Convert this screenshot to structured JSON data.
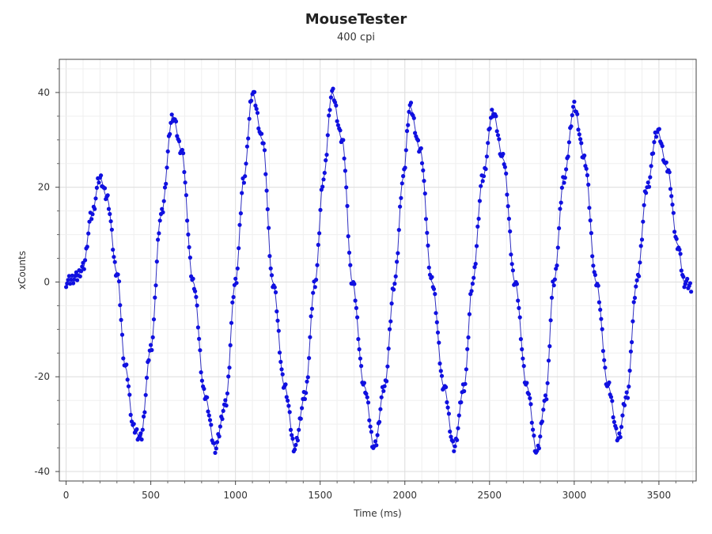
{
  "chart_data": {
    "type": "scatter",
    "title": "MouseTester",
    "subtitle": "400 cpi",
    "xlabel": "Time (ms)",
    "ylabel": "xCounts",
    "xlim": [
      -40,
      3720
    ],
    "ylim": [
      -42,
      47
    ],
    "x_ticks": [
      0,
      500,
      1000,
      1500,
      2000,
      2500,
      3000,
      3500
    ],
    "y_ticks": [
      -40,
      -20,
      0,
      20,
      40
    ],
    "grid": true,
    "legend": "none",
    "marker_color": "#1010e0",
    "line_color": "#3030c0",
    "series": [
      {
        "points_description_keyframes": [
          [
            0,
            0
          ],
          [
            60,
            1
          ],
          [
            100,
            3
          ],
          [
            150,
            14
          ],
          [
            200,
            22
          ],
          [
            240,
            18
          ],
          [
            300,
            2
          ],
          [
            350,
            -18
          ],
          [
            400,
            -31
          ],
          [
            440,
            -33
          ],
          [
            500,
            -14
          ],
          [
            560,
            14
          ],
          [
            630,
            35
          ],
          [
            680,
            28
          ],
          [
            750,
            0
          ],
          [
            820,
            -24
          ],
          [
            880,
            -35
          ],
          [
            940,
            -26
          ],
          [
            1000,
            0
          ],
          [
            1050,
            22
          ],
          [
            1100,
            40
          ],
          [
            1160,
            30
          ],
          [
            1220,
            0
          ],
          [
            1290,
            -22
          ],
          [
            1350,
            -35
          ],
          [
            1410,
            -24
          ],
          [
            1470,
            0
          ],
          [
            1520,
            22
          ],
          [
            1570,
            40
          ],
          [
            1630,
            30
          ],
          [
            1690,
            0
          ],
          [
            1760,
            -22
          ],
          [
            1820,
            -35
          ],
          [
            1880,
            -22
          ],
          [
            1940,
            0
          ],
          [
            1990,
            22
          ],
          [
            2030,
            37
          ],
          [
            2090,
            28
          ],
          [
            2160,
            0
          ],
          [
            2230,
            -22
          ],
          [
            2290,
            -35
          ],
          [
            2350,
            -22
          ],
          [
            2400,
            0
          ],
          [
            2460,
            22
          ],
          [
            2520,
            36
          ],
          [
            2580,
            26
          ],
          [
            2650,
            0
          ],
          [
            2720,
            -22
          ],
          [
            2780,
            -36
          ],
          [
            2830,
            -25
          ],
          [
            2880,
            0
          ],
          [
            2940,
            22
          ],
          [
            3000,
            37
          ],
          [
            3060,
            26
          ],
          [
            3130,
            0
          ],
          [
            3200,
            -22
          ],
          [
            3260,
            -33
          ],
          [
            3310,
            -24
          ],
          [
            3370,
            0
          ],
          [
            3430,
            20
          ],
          [
            3490,
            32
          ],
          [
            3550,
            24
          ],
          [
            3610,
            8
          ],
          [
            3650,
            0
          ],
          [
            3690,
            -1
          ]
        ]
      }
    ]
  }
}
